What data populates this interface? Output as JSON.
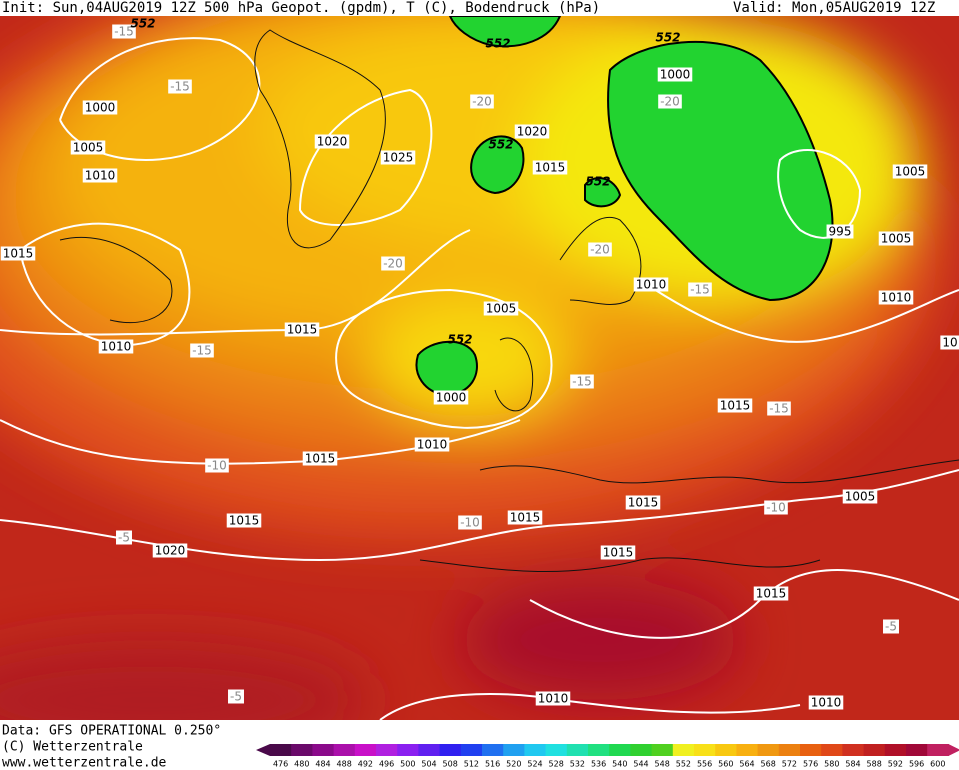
{
  "header": {
    "init": "Init: Sun,04AUG2019 12Z",
    "title": "500 hPa Geopot. (gpdm), T (C), Bodendruck (hPa)",
    "valid": "Valid: Mon,05AUG2019 12Z"
  },
  "map": {
    "pressure_labels": [
      "1000",
      "1005",
      "1010",
      "1015",
      "1010",
      "1015",
      "1020",
      "1025",
      "1020",
      "1015",
      "1000",
      "1005",
      "995",
      "1005",
      "1010",
      "1005",
      "1000",
      "1010",
      "1015",
      "1015",
      "1020",
      "1015",
      "1015",
      "1015",
      "1015",
      "1010",
      "1005",
      "1015",
      "1010",
      "1010",
      "10"
    ],
    "temperature_labels": [
      "-15",
      "-15",
      "-20",
      "-20",
      "-20",
      "-20",
      "-15",
      "-15",
      "-15",
      "-15",
      "-10",
      "-10",
      "-10",
      "-5",
      "-5",
      "-5"
    ],
    "geopotential_labels": [
      "552",
      "552",
      "552",
      "552",
      "552",
      "552"
    ]
  },
  "footer": {
    "source": "Data: GFS OPERATIONAL 0.250°",
    "copyright": "(C) Wetterzentrale",
    "url": "www.wetterzentrale.de"
  },
  "colorbar": {
    "values": [
      476,
      480,
      484,
      488,
      492,
      496,
      500,
      504,
      508,
      512,
      516,
      520,
      524,
      528,
      532,
      536,
      540,
      544,
      548,
      552,
      556,
      560,
      564,
      568,
      572,
      576,
      580,
      584,
      588,
      592,
      596,
      600
    ]
  }
}
